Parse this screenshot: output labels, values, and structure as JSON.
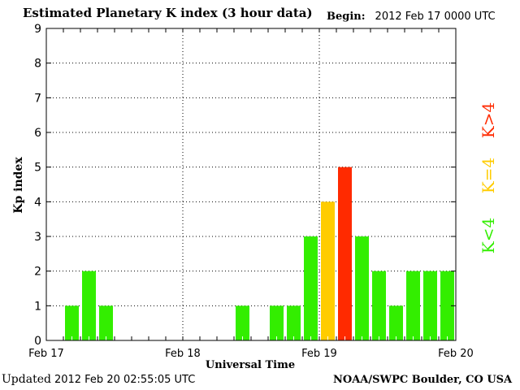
{
  "header": {
    "title": "Estimated Planetary K index (3 hour data)",
    "begin_label": "Begin:",
    "begin_value": "2012 Feb 17 0000 UTC"
  },
  "footer": {
    "updated_label": "Updated",
    "updated_value": "2012 Feb 20 02:55:05 UTC",
    "credit": "NOAA/SWPC Boulder, CO USA"
  },
  "legend": [
    {
      "label": "K>4",
      "color": "#ff2a00"
    },
    {
      "label": "K=4",
      "color": "#ffcc00"
    },
    {
      "label": "K<4",
      "color": "#33ee00"
    }
  ],
  "colors": {
    "below4": "#33ee00",
    "equal4": "#ffcc00",
    "above4": "#ff2a00"
  },
  "chart_data": {
    "type": "bar",
    "xlabel": "Universal Time",
    "ylabel": "Kp index",
    "ylim": [
      0,
      9
    ],
    "yticks": [
      "0",
      "1",
      "2",
      "3",
      "4",
      "5",
      "6",
      "7",
      "8",
      "9"
    ],
    "xtick_labels": [
      "Feb 17",
      "Feb 18",
      "Feb 19",
      "Feb 20"
    ],
    "grid": true,
    "bars": [
      {
        "slot": 1,
        "value": 1
      },
      {
        "slot": 2,
        "value": 2
      },
      {
        "slot": 3,
        "value": 1
      },
      {
        "slot": 11,
        "value": 1
      },
      {
        "slot": 13,
        "value": 1
      },
      {
        "slot": 14,
        "value": 1
      },
      {
        "slot": 15,
        "value": 3
      },
      {
        "slot": 16,
        "value": 4
      },
      {
        "slot": 17,
        "value": 5
      },
      {
        "slot": 18,
        "value": 3
      },
      {
        "slot": 19,
        "value": 2
      },
      {
        "slot": 20,
        "value": 1
      },
      {
        "slot": 21,
        "value": 2
      },
      {
        "slot": 22,
        "value": 2
      },
      {
        "slot": 23,
        "value": 2
      }
    ]
  }
}
